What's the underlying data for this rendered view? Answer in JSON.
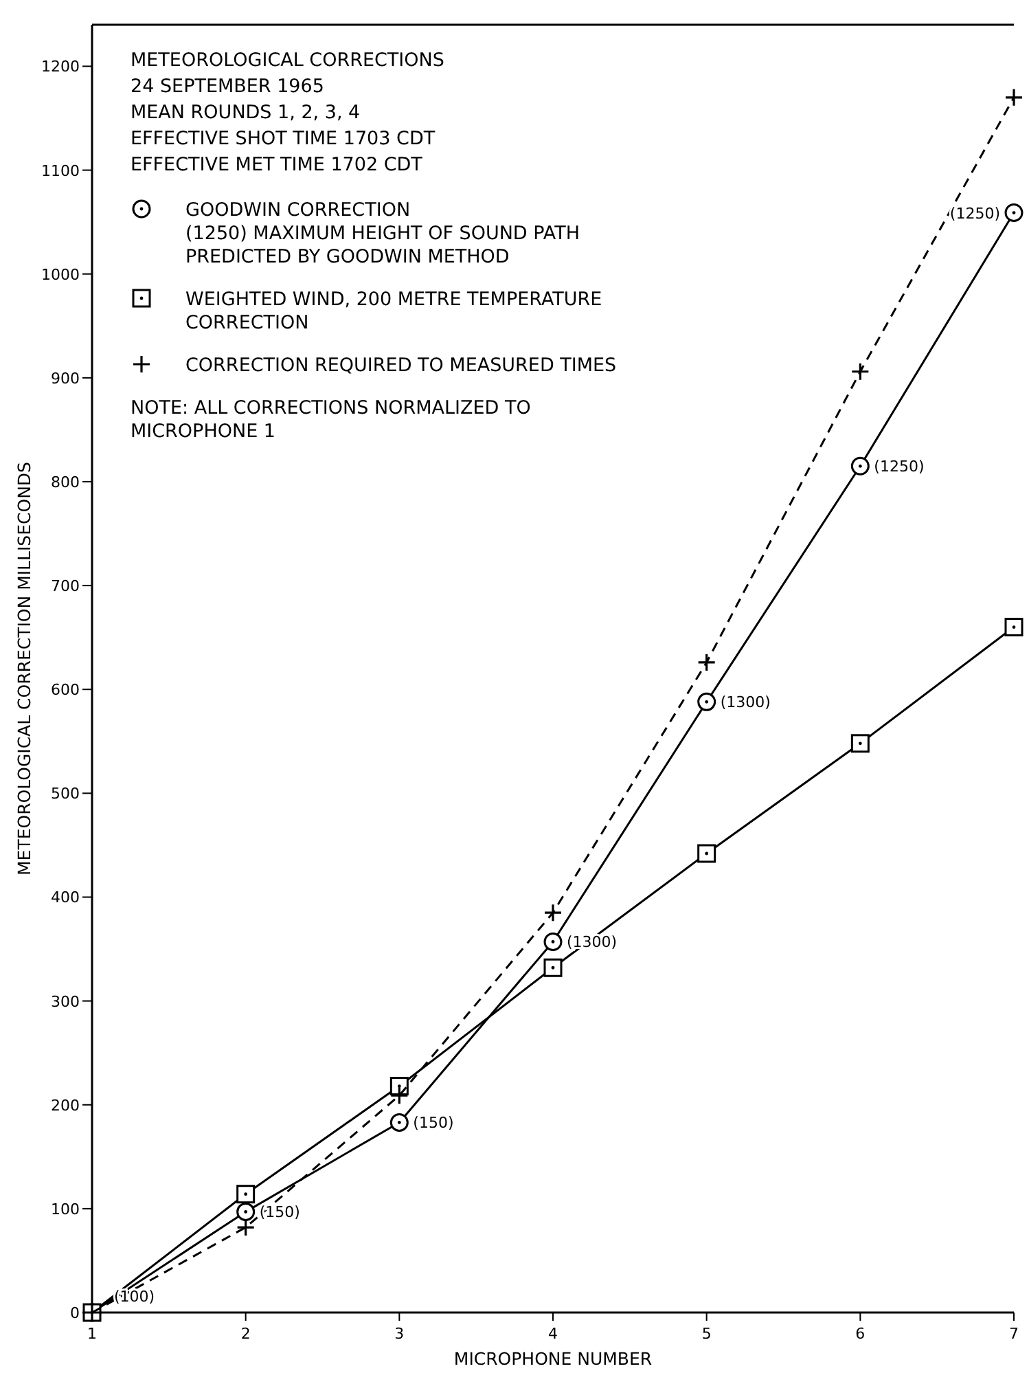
{
  "chart_data": {
    "type": "line",
    "title": "METEOROLOGICAL CORRECTIONS",
    "subtitle": "24 SEPTEMBER 1965\nMEAN ROUNDS 1, 2, 3, 4\nEFFECTIVE SHOT TIME 1703 CDT\nEFFECTIVE MET TIME 1702 CDT",
    "xlabel": "MICROPHONE NUMBER",
    "ylabel": "METEOROLOGICAL CORRECTION MILLISECONDS",
    "x": [
      1,
      2,
      3,
      4,
      5,
      6,
      7
    ],
    "xlim": [
      1,
      7
    ],
    "xticks": [
      1,
      2,
      3,
      4,
      5,
      6,
      7
    ],
    "ylim": [
      0,
      1240
    ],
    "yticks": [
      0,
      100,
      200,
      300,
      400,
      500,
      600,
      700,
      800,
      900,
      1000,
      1100,
      1200
    ],
    "grid": false,
    "legend": "top left",
    "series": [
      {
        "name": "GOODWIN CORRECTION\n(1250) MAXIMUM HEIGHT OF SOUND PATH\nPREDICTED BY GOODWIN METHOD",
        "color": "#000000",
        "marker": "circle",
        "line_style": "solid",
        "values": [
          0,
          97,
          183,
          357,
          588,
          815,
          1059
        ]
      },
      {
        "name": "WEIGHTED WIND, 200 METRE TEMPERATURE\nCORRECTION",
        "color": "#000000",
        "marker": "square",
        "line_style": "solid",
        "values": [
          0,
          114,
          218,
          332,
          442,
          548,
          660
        ]
      },
      {
        "name": "CORRECTION REQUIRED TO MEASURED TIMES",
        "color": "#000000",
        "marker": "cross",
        "line_style": "dashed",
        "values": [
          0,
          82,
          209,
          385,
          626,
          906,
          1170
        ]
      }
    ],
    "annotations": [
      "NOTE: ALL CORRECTIONS NORMALIZED TO\nMICROPHONE 1",
      {
        "text": "(100)",
        "x": 1,
        "y": 0
      },
      {
        "text": "(150)",
        "x": 2,
        "y": 97
      },
      {
        "text": "(150)",
        "x": 3,
        "y": 183
      },
      {
        "text": "(1300)",
        "x": 4,
        "y": 357
      },
      {
        "text": "(1300)",
        "x": 5,
        "y": 588
      },
      {
        "text": "(1250)",
        "x": 6,
        "y": 815
      },
      {
        "text": "(1250)",
        "x": 7,
        "y": 1059
      }
    ]
  }
}
